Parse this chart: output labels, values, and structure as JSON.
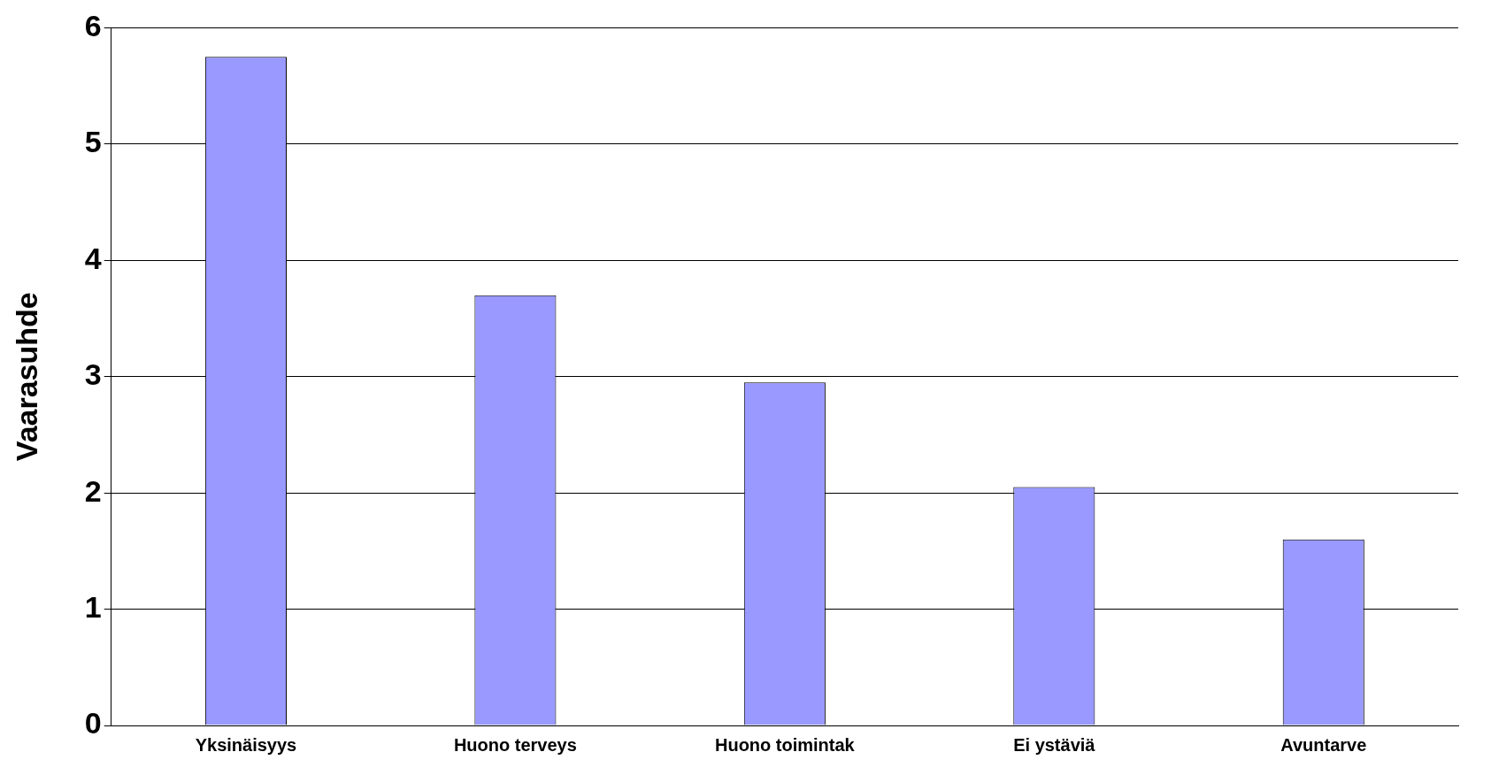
{
  "chart_data": {
    "type": "bar",
    "ylabel": "Vaarasuhde",
    "categories": [
      "Yksinäisyys",
      "Huono terveys",
      "Huono toimintak",
      "Ei ystäviä",
      "Avuntarve"
    ],
    "values": [
      5.75,
      3.7,
      2.95,
      2.05,
      1.6
    ],
    "color": "#9999ff",
    "ylim": [
      0,
      6
    ],
    "yticks": [
      0,
      1,
      2,
      3,
      4,
      5,
      6
    ],
    "grid": "y",
    "legend": false
  }
}
